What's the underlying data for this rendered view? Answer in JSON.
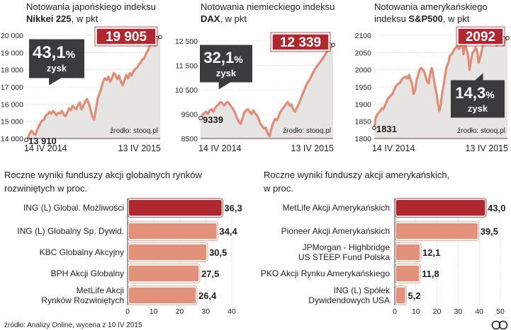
{
  "colors": {
    "accent": "#b0272f",
    "line": "#e08c76",
    "area": "#e7e4e4",
    "bar": "#e2927b",
    "bar_highlight": "#b0272f",
    "bubble": "#3b3b3d",
    "grid": "#c8c6c6"
  },
  "chart_data": [
    {
      "type": "line",
      "title_line1": "Notowania japońskiego indeksu",
      "title_bold": "Nikkei 225",
      "title_suffix": ", w pkt",
      "y_ticks": [
        "20 000",
        "19 000",
        "18 000",
        "17 000",
        "16 000",
        "15 000",
        "14 000"
      ],
      "ylim": [
        14000,
        20000
      ],
      "x_labels": [
        "14 IV 2014",
        "13 IV 2015"
      ],
      "start_value": 13910,
      "start_label": "13 910",
      "end_value": 19905,
      "end_label": "19 905",
      "change_value": "43,1",
      "change_unit": "%",
      "change_word": "zysk",
      "source": "źrodło: stooq.pl",
      "values": [
        13910,
        14050,
        14300,
        14450,
        14300,
        14200,
        14450,
        14700,
        14900,
        15050,
        15100,
        15350,
        15400,
        15550,
        15450,
        15600,
        15500,
        15350,
        15500,
        15450,
        15600,
        15400,
        15300,
        15500,
        15750,
        15650,
        15900,
        15800,
        15700,
        15950,
        16100,
        15700,
        15900,
        16150,
        16300,
        16050,
        15700,
        15300,
        15100,
        15700,
        16300,
        16600,
        16900,
        17300,
        17500,
        17400,
        17600,
        17300,
        17500,
        17800,
        17700,
        17450,
        17650,
        17300,
        17100,
        17400,
        17700,
        17500,
        17800,
        17650,
        17900,
        18050,
        18100,
        18300,
        18400,
        18600,
        18650,
        18900,
        19100,
        19350,
        19500,
        19600,
        19400,
        19700,
        19850,
        19905
      ]
    },
    {
      "type": "line",
      "title_line1": "Notowania niemieckiego indeksu",
      "title_bold": "DAX",
      "title_suffix": ", w pkt",
      "y_ticks": [
        "12 500",
        "11 500",
        "10 500",
        "9500",
        "8500"
      ],
      "ylim": [
        8500,
        12500
      ],
      "x_labels": [
        "14 IV 2014",
        "13 IV 2015"
      ],
      "start_value": 9339,
      "start_label": "9339",
      "end_value": 12339,
      "end_label": "12 339",
      "change_value": "32,1",
      "change_unit": "%",
      "change_word": "zysk",
      "source": "źrodło: stooq.pl",
      "values": [
        9339,
        9450,
        9550,
        9600,
        9500,
        9650,
        9700,
        9600,
        9750,
        9850,
        9900,
        10000,
        9950,
        9850,
        9950,
        10000,
        9900,
        9800,
        9700,
        9550,
        9350,
        9200,
        9100,
        9300,
        9550,
        9650,
        9700,
        9600,
        9500,
        9650,
        9550,
        9450,
        9300,
        9100,
        9000,
        8900,
        8950,
        8700,
        8600,
        8900,
        9150,
        9300,
        9250,
        9400,
        9600,
        9700,
        9800,
        9900,
        10000,
        9850,
        9900,
        9700,
        9600,
        9750,
        9900,
        10100,
        10300,
        10450,
        10650,
        10800,
        10900,
        11050,
        11200,
        11350,
        11450,
        11550,
        11650,
        11750,
        11850,
        12000,
        12100,
        12200,
        12250,
        12339
      ]
    },
    {
      "type": "line",
      "title_line1": "Notowania amerykańskiego",
      "title_prefix": "indeksu ",
      "title_bold": "S&P500",
      "title_suffix": ", w pkt",
      "y_ticks": [
        "2100",
        "2050",
        "2000",
        "1950",
        "1900",
        "1850",
        "1800"
      ],
      "ylim": [
        1800,
        2100
      ],
      "x_labels": [
        "14 IV 2014",
        "13 IV 2015"
      ],
      "start_value": 1831,
      "start_label": "1831",
      "end_value": 2092,
      "end_label": "2092",
      "change_value": "14,3",
      "change_unit": "%",
      "change_word": "zysk",
      "source": "źrodło: stooq.pl",
      "values": [
        1831,
        1860,
        1870,
        1875,
        1880,
        1888,
        1885,
        1895,
        1905,
        1915,
        1920,
        1925,
        1930,
        1940,
        1950,
        1955,
        1960,
        1962,
        1970,
        1975,
        1978,
        1980,
        1975,
        1985,
        1970,
        1960,
        1930,
        1940,
        1970,
        1985,
        2000,
        2005,
        2000,
        1995,
        1980,
        1965,
        1960,
        1990,
        2005,
        1985,
        1955,
        1935,
        1905,
        1880,
        1900,
        1935,
        1960,
        1990,
        2010,
        2020,
        2040,
        2045,
        2050,
        2060,
        2065,
        2070,
        2060,
        2075,
        2085,
        2045,
        2075,
        2060,
        2040,
        2000,
        2030,
        2050,
        2055,
        2065,
        2055,
        2020,
        2035,
        2055,
        2075,
        2095,
        2110,
        2095,
        2100,
        2105,
        2110,
        2090,
        2080,
        2070,
        2100,
        2095,
        2085,
        2070,
        2080,
        2090,
        2092
      ]
    },
    {
      "type": "bar",
      "title_line1": "Roczne wyniki funduszy akcji globalnych rynków",
      "title_line2": "rozwiniętych w proc.",
      "categories": [
        [
          "ING (L) Global. Możliwości"
        ],
        [
          "ING (L) Globalny Sp. Dywid."
        ],
        [
          "KBC Globalny Akcyjny"
        ],
        [
          "BPH Akcji Globalny"
        ],
        [
          "MetLife Akcji",
          "Rynków Rozwiniętych"
        ]
      ],
      "values": [
        36.3,
        34.4,
        30.5,
        27.5,
        26.4
      ],
      "value_labels": [
        "36,3",
        "34,4",
        "30,5",
        "27,5",
        "26,4"
      ],
      "highlight_index": 0,
      "xlim": [
        0,
        40
      ],
      "x_ticks": [
        0,
        10,
        20,
        30,
        40
      ]
    },
    {
      "type": "bar",
      "title_line1": "Roczne wyniki funduszy akcji amerykańskich,",
      "title_line2": "w proc.",
      "categories": [
        [
          "MetLife Akcji Amerykańskich"
        ],
        [
          "Pioneer Akcji Amerykańskich"
        ],
        [
          "JPMorgan - Highbridge",
          "US STEEP Fund Polska"
        ],
        [
          "PKO Akcji Rynku Amerykańskiego"
        ],
        [
          "ING (L) Spółek",
          "Dywidendowych USA"
        ]
      ],
      "values": [
        43.0,
        39.5,
        12.1,
        11.8,
        5.2
      ],
      "value_labels": [
        "43,0",
        "39,5",
        "12,1",
        "11,8",
        "5,2"
      ],
      "highlight_index": 0,
      "xlim": [
        0,
        50
      ],
      "x_ticks": [
        0,
        10,
        20,
        30,
        40,
        50
      ]
    }
  ],
  "footer": {
    "source": "źródło: Analizy Online, wycena z 10 IV 2015",
    "logo": "PAP"
  }
}
